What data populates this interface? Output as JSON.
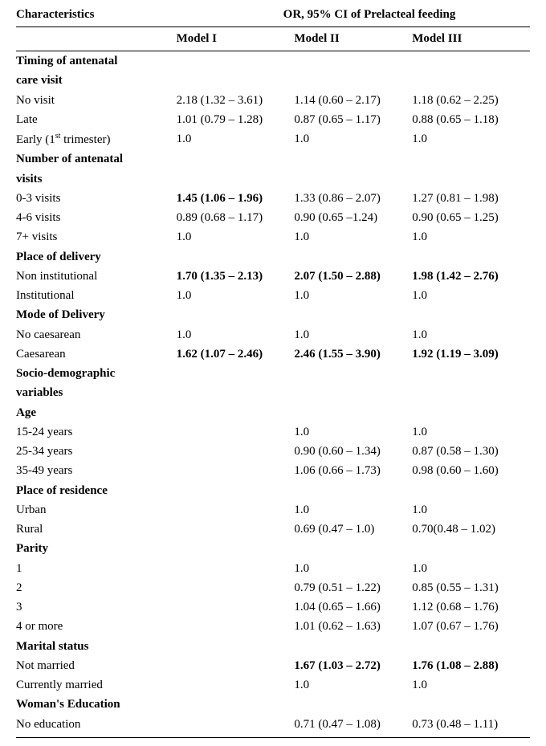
{
  "header": {
    "left": "Characteristics",
    "right": "OR, 95% CI  of Prelacteal feeding"
  },
  "models": {
    "m1": "Model I",
    "m2": "Model II",
    "m3": "Model III"
  },
  "sections": [
    {
      "title_lines": [
        "Timing of antenatal",
        "care visit"
      ],
      "rows": [
        {
          "label": "No visit",
          "m1": "2.18 (1.32 – 3.61)",
          "m2": "1.14 (0.60 – 2.17)",
          "m3": "1.18 (0.62 – 2.25)",
          "bold": [
            false,
            false,
            false
          ]
        },
        {
          "label": "Late",
          "m1": "1.01 (0.79 – 1.28)",
          "m2": "0.87 (0.65 – 1.17)",
          "m3": "0.88 (0.65 – 1.18)",
          "bold": [
            false,
            false,
            false
          ]
        },
        {
          "label_html": "Early (1<span class='sup'>st</span> trimester)",
          "m1": "1.0",
          "m2": "1.0",
          "m3": "1.0",
          "bold": [
            false,
            false,
            false
          ]
        }
      ]
    },
    {
      "title_lines": [
        "Number of antenatal",
        "visits"
      ],
      "rows": [
        {
          "label": "0-3 visits",
          "m1": "1.45 (1.06 – 1.96)",
          "m2": "1.33 (0.86 – 2.07)",
          "m3": "1.27 (0.81 – 1.98)",
          "bold": [
            true,
            false,
            false
          ]
        },
        {
          "label": "4-6 visits",
          "m1": "0.89 (0.68 – 1.17)",
          "m2": "0.90  (0.65 –1.24)",
          "m3": "0.90 (0.65 – 1.25)",
          "bold": [
            false,
            false,
            false
          ]
        },
        {
          "label": "7+ visits",
          "m1": "1.0",
          "m2": "1.0",
          "m3": "1.0",
          "bold": [
            false,
            false,
            false
          ]
        }
      ]
    },
    {
      "title_lines": [
        "Place of delivery"
      ],
      "rows": [
        {
          "label": "Non institutional",
          "m1": "1.70 (1.35 – 2.13)",
          "m2": "2.07 (1.50 – 2.88)",
          "m3": "1.98 (1.42 – 2.76)",
          "bold": [
            true,
            true,
            true
          ]
        },
        {
          "label": "Institutional",
          "m1": "1.0",
          "m2": "1.0",
          "m3": "1.0",
          "bold": [
            false,
            false,
            false
          ]
        }
      ]
    },
    {
      "title_lines": [
        "Mode of Delivery"
      ],
      "rows": [
        {
          "label": "No  caesarean",
          "m1": "1.0",
          "m2": "1.0",
          "m3": "1.0",
          "bold": [
            false,
            false,
            false
          ]
        },
        {
          "label": "Caesarean",
          "m1": "1.62 (1.07 – 2.46)",
          "m2": "2.46 (1.55 – 3.90)",
          "m3": "1.92 (1.19 – 3.09)",
          "bold": [
            true,
            true,
            true
          ]
        }
      ]
    },
    {
      "title_lines": [
        "Socio-demographic",
        "variables"
      ],
      "rows": []
    },
    {
      "title_lines": [
        "Age"
      ],
      "rows": [
        {
          "label": "15-24 years",
          "m1": "",
          "m2": "1.0",
          "m3": "1.0",
          "bold": [
            false,
            false,
            false
          ]
        },
        {
          "label": "25-34 years",
          "m1": "",
          "m2": "0.90 (0.60 – 1.34)",
          "m3": "0.87 (0.58 – 1.30)",
          "bold": [
            false,
            false,
            false
          ]
        },
        {
          "label": "35-49 years",
          "m1": "",
          "m2": "1.06 (0.66 – 1.73)",
          "m3": "0.98 (0.60 – 1.60)",
          "bold": [
            false,
            false,
            false
          ]
        }
      ]
    },
    {
      "title_lines": [
        "Place of residence"
      ],
      "rows": [
        {
          "label": "Urban",
          "m1": "",
          "m2": "1.0",
          "m3": "1.0",
          "bold": [
            false,
            false,
            false
          ]
        },
        {
          "label": "Rural",
          "m1": "",
          "m2": "0.69 (0.47 – 1.0)",
          "m3": "0.70(0.48 – 1.02)",
          "bold": [
            false,
            false,
            false
          ]
        }
      ]
    },
    {
      "title_lines": [
        "Parity"
      ],
      "rows": [
        {
          "label": "1",
          "m1": "",
          "m2": "1.0",
          "m3": "1.0",
          "bold": [
            false,
            false,
            false
          ]
        },
        {
          "label": "2",
          "m1": "",
          "m2": "0.79 (0.51 – 1.22)",
          "m3": "0.85 (0.55 – 1.31)",
          "bold": [
            false,
            false,
            false
          ]
        },
        {
          "label": "3",
          "m1": "",
          "m2": "1.04 (0.65 – 1.66)",
          "m3": "1.12 (0.68 – 1.76)",
          "bold": [
            false,
            false,
            false
          ]
        },
        {
          "label": "4 or more",
          "m1": "",
          "m2": "1.01 (0.62 – 1.63)",
          "m3": "1.07 (0.67 – 1.76)",
          "bold": [
            false,
            false,
            false
          ]
        }
      ]
    },
    {
      "title_lines": [
        "Marital status"
      ],
      "rows": [
        {
          "label": "Not married",
          "m1": "",
          "m2": "1.67 (1.03 – 2.72)",
          "m3": "1.76 (1.08 – 2.88)",
          "bold": [
            false,
            true,
            true
          ]
        },
        {
          "label": "Currently married",
          "m1": "",
          "m2": "1.0",
          "m3": "1.0",
          "bold": [
            false,
            false,
            false
          ]
        }
      ]
    },
    {
      "title_lines": [
        "Woman's Education"
      ],
      "rows": [
        {
          "label": "No education",
          "m1": "",
          "m2": "0.71 (0.47 – 1.08)",
          "m3": "0.73 (0.48 – 1.11)",
          "bold": [
            false,
            false,
            false
          ]
        }
      ]
    }
  ]
}
